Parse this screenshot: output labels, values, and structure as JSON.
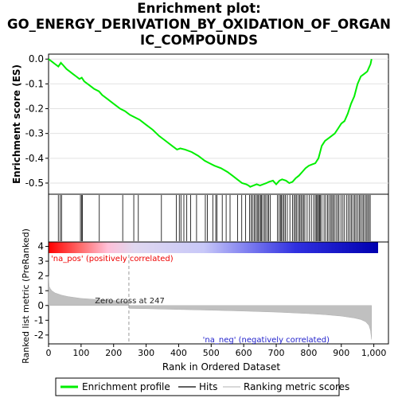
{
  "title_lines": [
    "Enrichment plot:",
    "GO_ENERGY_DERIVATION_BY_OXIDATION_OF_ORGAN",
    "IC_COMPOUNDS"
  ],
  "chart_data": {
    "type": "line",
    "top_panel": {
      "ylabel": "Enrichment score (ES)",
      "yticks": [
        0.0,
        -0.1,
        -0.2,
        -0.3,
        -0.4,
        -0.5
      ],
      "ylim": [
        -0.545,
        0.02
      ],
      "series": [
        {
          "name": "Enrichment profile",
          "color": "#00ee00",
          "x": [
            0,
            10,
            20,
            30,
            38,
            45,
            55,
            65,
            75,
            85,
            95,
            102,
            110,
            125,
            140,
            155,
            165,
            180,
            200,
            220,
            235,
            250,
            265,
            280,
            300,
            320,
            340,
            360,
            380,
            395,
            405,
            420,
            440,
            460,
            480,
            495,
            510,
            530,
            550,
            565,
            580,
            595,
            608,
            615,
            620,
            630,
            640,
            650,
            660,
            670,
            678,
            690,
            700,
            710,
            718,
            730,
            740,
            750,
            760,
            770,
            780,
            790,
            800,
            810,
            820,
            830,
            840,
            850,
            860,
            870,
            880,
            890,
            900,
            910,
            920,
            930,
            940,
            950,
            960,
            970,
            980,
            990,
            993
          ],
          "y": [
            0.0,
            -0.01,
            -0.02,
            -0.03,
            -0.015,
            -0.025,
            -0.04,
            -0.05,
            -0.06,
            -0.07,
            -0.08,
            -0.075,
            -0.09,
            -0.105,
            -0.12,
            -0.13,
            -0.145,
            -0.16,
            -0.18,
            -0.2,
            -0.21,
            -0.225,
            -0.235,
            -0.245,
            -0.265,
            -0.285,
            -0.31,
            -0.33,
            -0.35,
            -0.365,
            -0.36,
            -0.365,
            -0.375,
            -0.39,
            -0.41,
            -0.42,
            -0.43,
            -0.44,
            -0.455,
            -0.47,
            -0.485,
            -0.5,
            -0.505,
            -0.51,
            -0.515,
            -0.51,
            -0.505,
            -0.51,
            -0.505,
            -0.5,
            -0.495,
            -0.49,
            -0.505,
            -0.49,
            -0.485,
            -0.49,
            -0.5,
            -0.495,
            -0.48,
            -0.47,
            -0.455,
            -0.44,
            -0.43,
            -0.425,
            -0.42,
            -0.4,
            -0.35,
            -0.33,
            -0.32,
            -0.31,
            -0.3,
            -0.28,
            -0.26,
            -0.25,
            -0.22,
            -0.18,
            -0.15,
            -0.1,
            -0.07,
            -0.06,
            -0.05,
            -0.02,
            0.0
          ]
        }
      ]
    },
    "hits_panel": {
      "positions": [
        30,
        36,
        40,
        98,
        102,
        104,
        156,
        228,
        262,
        276,
        347,
        393,
        402,
        407,
        416,
        425,
        437,
        455,
        482,
        488,
        505,
        514,
        518,
        534,
        546,
        558,
        581,
        594,
        606,
        618,
        623,
        627,
        632,
        636,
        641,
        644,
        648,
        652,
        655,
        659,
        664,
        668,
        673,
        677,
        682,
        704,
        709,
        713,
        716,
        720,
        724,
        728,
        734,
        742,
        750,
        755,
        759,
        763,
        768,
        772,
        776,
        780,
        784,
        788,
        795,
        802,
        808,
        815,
        820,
        824,
        827,
        830,
        833,
        836,
        840,
        847,
        852,
        858,
        862,
        867,
        871,
        875,
        879,
        884,
        889,
        893,
        899,
        905,
        910,
        917,
        922,
        927,
        931,
        936,
        941,
        945,
        950,
        955,
        959,
        964,
        968,
        973,
        977,
        981,
        985,
        989
      ]
    },
    "metric_panel": {
      "ylabel": "Ranked list metric (PreRanked)",
      "xlabel": "Rank in Ordered Dataset",
      "yticks": [
        4,
        3,
        2,
        1,
        0,
        -1,
        -2
      ],
      "ylim": [
        -2.6,
        4.3
      ],
      "xticks": [
        0,
        100,
        200,
        300,
        400,
        500,
        600,
        700,
        800,
        900,
        1000
      ],
      "xtick_labels": [
        "0",
        "100",
        "200",
        "300",
        "400",
        "500",
        "600",
        "700",
        "800",
        "900",
        "1,000"
      ],
      "xlim": [
        0,
        1045
      ],
      "zero_cross": 247,
      "zero_cross_label": "Zero cross at 247",
      "pos_label": "'na_pos' (positively correlated)",
      "neg_label": "'na_neg' (negatively correlated)",
      "metric_x": [
        0,
        2,
        5,
        10,
        20,
        40,
        60,
        100,
        150,
        200,
        246,
        248,
        300,
        400,
        500,
        600,
        700,
        800,
        850,
        900,
        940,
        960,
        975,
        985,
        990,
        993
      ],
      "metric_y": [
        2.0,
        1.3,
        1.15,
        1.0,
        0.85,
        0.7,
        0.6,
        0.48,
        0.4,
        0.33,
        0.28,
        -0.2,
        -0.22,
        -0.27,
        -0.32,
        -0.38,
        -0.45,
        -0.55,
        -0.62,
        -0.72,
        -0.85,
        -0.95,
        -1.1,
        -1.35,
        -1.7,
        -2.3
      ]
    },
    "legend": [
      {
        "label": "Enrichment profile",
        "color": "#00ee00"
      },
      {
        "label": "Hits",
        "color": "#000000"
      },
      {
        "label": "Ranking metric scores",
        "color": "#c0c0c0"
      }
    ]
  }
}
